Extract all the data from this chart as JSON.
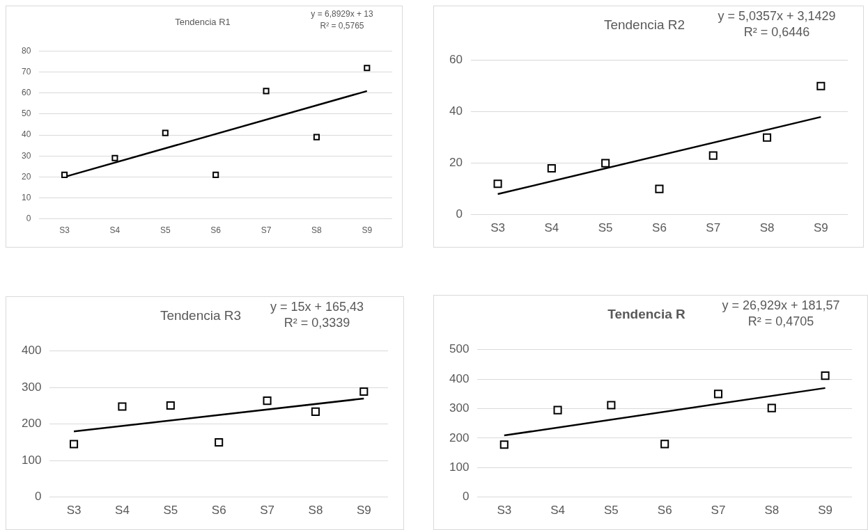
{
  "chart_data": [
    {
      "type": "scatter",
      "title": "Tendencia R1",
      "categories": [
        "S3",
        "S4",
        "S5",
        "S6",
        "S7",
        "S8",
        "S9"
      ],
      "series": [
        {
          "color": "#000000",
          "marker": "square",
          "values": [
            21,
            29,
            41,
            21,
            61,
            39,
            72
          ]
        },
        {
          "type": "line",
          "color": "#000000",
          "x": [
            "S3",
            "S9"
          ],
          "values": [
            20,
            61
          ]
        }
      ],
      "ylim": [
        0,
        80
      ],
      "yticks": [
        0,
        10,
        20,
        30,
        40,
        50,
        60,
        70,
        80
      ],
      "grid": "y",
      "annotations": [
        "y = 6,8929x + 13",
        "R² = 0,5765"
      ]
    },
    {
      "type": "scatter",
      "title": "Tendencia R2",
      "categories": [
        "S3",
        "S4",
        "S5",
        "S6",
        "S7",
        "S8",
        "S9"
      ],
      "series": [
        {
          "color": "#000000",
          "marker": "square",
          "values": [
            12,
            18,
            20,
            10,
            23,
            30,
            50
          ]
        },
        {
          "type": "line",
          "color": "#000000",
          "x": [
            "S3",
            "S9"
          ],
          "values": [
            8,
            38
          ]
        }
      ],
      "ylim": [
        0,
        60
      ],
      "yticks": [
        0,
        20,
        40,
        60
      ],
      "grid": "y",
      "annotations": [
        "y = 5,0357x + 3,1429",
        "R² = 0,6446"
      ]
    },
    {
      "type": "scatter",
      "title": "Tendencia R3",
      "categories": [
        "S3",
        "S4",
        "S5",
        "S6",
        "S7",
        "S8",
        "S9"
      ],
      "series": [
        {
          "color": "#000000",
          "marker": "square",
          "values": [
            145,
            248,
            251,
            150,
            264,
            234,
            289
          ]
        },
        {
          "type": "line",
          "color": "#000000",
          "x": [
            "S3",
            "S9"
          ],
          "values": [
            180,
            270
          ]
        }
      ],
      "ylim": [
        0,
        400
      ],
      "yticks": [
        0,
        100,
        200,
        300,
        400
      ],
      "grid": "y",
      "annotations": [
        "y = 15x + 165,43",
        "R² = 0,3339"
      ]
    },
    {
      "type": "scatter",
      "title": "Tendencia R",
      "categories": [
        "S3",
        "S4",
        "S5",
        "S6",
        "S7",
        "S8",
        "S9"
      ],
      "series": [
        {
          "color": "#000000",
          "marker": "square",
          "values": [
            178,
            295,
            312,
            180,
            350,
            302,
            412
          ]
        },
        {
          "type": "line",
          "color": "#000000",
          "x": [
            "S3",
            "S9"
          ],
          "values": [
            209,
            370
          ]
        }
      ],
      "ylim": [
        0,
        500
      ],
      "yticks": [
        0,
        100,
        200,
        300,
        400,
        500
      ],
      "grid": "y",
      "annotations": [
        "y = 26,929x + 181,57",
        "R² = 0,4705"
      ]
    }
  ]
}
